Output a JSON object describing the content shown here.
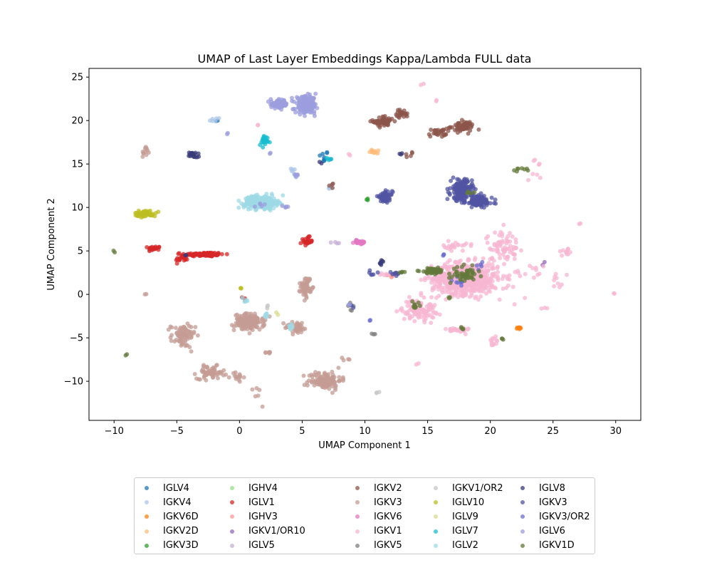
{
  "chart_data": {
    "type": "scatter",
    "title": "UMAP of Last Layer Embeddings Kappa/Lambda FULL data",
    "xlabel": "UMAP Component 1",
    "ylabel": "UMAP Component 2",
    "xlim": [
      -12,
      32
    ],
    "ylim": [
      -14.5,
      26
    ],
    "xticks": [
      -10,
      -5,
      0,
      5,
      10,
      15,
      20,
      25,
      30
    ],
    "yticks": [
      -10,
      -5,
      0,
      5,
      10,
      15,
      20,
      25
    ],
    "legend_position": "bottom",
    "legend_columns": 5,
    "series": [
      {
        "name": "IGLV4",
        "color": "#1f77b4",
        "clusters": [
          [
            6.7,
            15.8,
            0.35,
            0.6,
            10
          ],
          [
            -1.8,
            20.0,
            0.2,
            0.2,
            2
          ]
        ]
      },
      {
        "name": "IGKV4",
        "color": "#aec7e8",
        "clusters": [
          [
            -3.3,
            4.6,
            0.8,
            0.15,
            14
          ],
          [
            4.2,
            14.2,
            0.3,
            0.3,
            5
          ],
          [
            7.3,
            12.3,
            0.3,
            0.2,
            5
          ],
          [
            -2.0,
            20.1,
            0.4,
            0.2,
            6
          ]
        ]
      },
      {
        "name": "IGKV6D",
        "color": "#ff7f0e",
        "clusters": [
          [
            22.3,
            -3.9,
            0.2,
            0.1,
            6
          ]
        ]
      },
      {
        "name": "IGKV2D",
        "color": "#ffbb78",
        "clusters": [
          [
            10.9,
            16.4,
            0.45,
            0.3,
            12
          ]
        ]
      },
      {
        "name": "IGKV3D",
        "color": "#2ca02c",
        "clusters": [
          [
            10.2,
            11.0,
            0.15,
            0.15,
            3
          ]
        ]
      },
      {
        "name": "IGHV4",
        "color": "#98df8a",
        "clusters": [
          [
            15.5,
            2.5,
            0.5,
            0.2,
            3
          ]
        ]
      },
      {
        "name": "IGLV1",
        "color": "#d62728",
        "clusters": [
          [
            -2.8,
            4.6,
            1.3,
            0.2,
            110
          ],
          [
            -6.8,
            5.3,
            0.4,
            0.2,
            22
          ],
          [
            -4.6,
            4.1,
            0.4,
            0.4,
            20
          ],
          [
            5.4,
            6.1,
            0.35,
            0.4,
            28
          ],
          [
            0.4,
            -0.5,
            0.15,
            0.2,
            3
          ]
        ]
      },
      {
        "name": "IGHV3",
        "color": "#ff9896",
        "clusters": [
          [
            11.9,
            2.1,
            0.3,
            0.2,
            5
          ]
        ]
      },
      {
        "name": "IGKV1/OR10",
        "color": "#9467bd",
        "clusters": [
          [
            9.3,
            6.1,
            0.2,
            0.2,
            3
          ],
          [
            24.2,
            3.5,
            0.15,
            0.15,
            2
          ]
        ]
      },
      {
        "name": "IGLV5",
        "color": "#c5b0d5",
        "clusters": [
          [
            7.6,
            6.0,
            0.3,
            0.2,
            4
          ]
        ]
      },
      {
        "name": "IGKV2",
        "color": "#8c564b",
        "clusters": [
          [
            11.5,
            19.9,
            0.7,
            0.5,
            60
          ],
          [
            13.0,
            20.8,
            0.4,
            0.4,
            24
          ],
          [
            15.8,
            18.6,
            0.6,
            0.4,
            30
          ],
          [
            17.8,
            19.3,
            0.8,
            0.5,
            60
          ],
          [
            13.5,
            16.1,
            0.3,
            0.2,
            5
          ],
          [
            7.2,
            12.5,
            0.2,
            0.2,
            4
          ]
        ]
      },
      {
        "name": "IGKV3",
        "color": "#c49c94",
        "clusters": [
          [
            0.8,
            -3.2,
            1.0,
            0.8,
            140
          ],
          [
            5.3,
            0.9,
            0.35,
            1.0,
            60
          ],
          [
            -4.5,
            -4.8,
            0.8,
            1.1,
            80
          ],
          [
            -2.3,
            -9.0,
            0.9,
            0.6,
            65
          ],
          [
            6.8,
            -9.9,
            1.1,
            0.9,
            120
          ],
          [
            4.6,
            -3.8,
            0.8,
            0.6,
            40
          ],
          [
            -7.5,
            16.4,
            0.2,
            0.6,
            12
          ],
          [
            -0.2,
            -9.5,
            0.4,
            0.5,
            14
          ],
          [
            2.4,
            -6.7,
            0.2,
            0.2,
            6
          ],
          [
            1.4,
            -11.8,
            0.5,
            1.0,
            6
          ],
          [
            8.6,
            -7.5,
            0.3,
            0.3,
            4
          ],
          [
            -7.5,
            0.0,
            0.1,
            0.1,
            2
          ]
        ]
      },
      {
        "name": "IGKV6",
        "color": "#e377c2",
        "clusters": [
          [
            9.6,
            6.0,
            0.4,
            0.2,
            18
          ]
        ]
      },
      {
        "name": "IGKV1",
        "color": "#f7b6d2",
        "clusters": [
          [
            18.0,
            1.8,
            2.2,
            1.5,
            650
          ],
          [
            14.3,
            -1.8,
            1.1,
            1.0,
            110
          ],
          [
            21.0,
            5.6,
            1.1,
            1.5,
            70
          ],
          [
            17.4,
            -4.1,
            0.8,
            0.3,
            30
          ],
          [
            20.4,
            -5.5,
            0.3,
            0.8,
            12
          ],
          [
            23.0,
            2.0,
            1.5,
            2.0,
            20
          ],
          [
            26.0,
            5.0,
            0.6,
            0.5,
            12
          ],
          [
            17.2,
            5.5,
            0.8,
            0.4,
            22
          ],
          [
            25.5,
            1.5,
            0.5,
            1.2,
            8
          ],
          [
            14.6,
            24.2,
            0.15,
            0.15,
            2
          ],
          [
            15.8,
            22.3,
            0.15,
            0.15,
            2
          ],
          [
            23.5,
            14.5,
            0.5,
            1.5,
            8
          ],
          [
            29.9,
            0.0,
            0.12,
            0.12,
            2
          ],
          [
            27.2,
            8.2,
            0.2,
            0.2,
            2
          ],
          [
            14.3,
            -8.0,
            0.15,
            0.15,
            2
          ],
          [
            8.8,
            16.1,
            0.15,
            0.15,
            2
          ],
          [
            1.5,
            19.5,
            0.15,
            0.15,
            2
          ],
          [
            24.3,
            -1.6,
            0.3,
            0.3,
            3
          ],
          [
            11.5,
            2.3,
            0.3,
            0.2,
            5
          ]
        ]
      },
      {
        "name": "IGKV5",
        "color": "#7f7f7f",
        "clusters": [
          [
            10.6,
            -4.5,
            0.15,
            0.15,
            3
          ],
          [
            8.9,
            -1.5,
            0.2,
            0.5,
            5
          ]
        ]
      },
      {
        "name": "IGKV1/OR2",
        "color": "#c7c7c7",
        "clusters": [
          [
            11.0,
            -11.4,
            0.15,
            0.15,
            3
          ],
          [
            2.2,
            -1.3,
            0.2,
            0.2,
            3
          ]
        ]
      },
      {
        "name": "IGLV10",
        "color": "#bcbd22",
        "clusters": [
          [
            -7.5,
            9.3,
            0.7,
            0.3,
            60
          ],
          [
            0.1,
            0.7,
            0.1,
            0.1,
            3
          ]
        ]
      },
      {
        "name": "IGLV9",
        "color": "#dbdb8d",
        "clusters": [
          [
            3.0,
            -2.2,
            0.15,
            0.15,
            2
          ]
        ]
      },
      {
        "name": "IGLV7",
        "color": "#17becf",
        "clusters": [
          [
            2.0,
            17.7,
            0.35,
            0.5,
            28
          ],
          [
            7.0,
            15.5,
            0.2,
            0.2,
            4
          ]
        ]
      },
      {
        "name": "IGLV2",
        "color": "#9edae5",
        "clusters": [
          [
            1.7,
            10.6,
            1.1,
            0.6,
            300
          ],
          [
            4.1,
            -3.9,
            0.3,
            0.4,
            10
          ],
          [
            0.5,
            -0.7,
            0.2,
            0.3,
            5
          ],
          [
            4.5,
            13.8,
            0.2,
            0.2,
            4
          ],
          [
            2.1,
            -2.5,
            0.2,
            0.3,
            6
          ]
        ]
      },
      {
        "name": "IGLV8",
        "color": "#393b79",
        "clusters": [
          [
            -3.7,
            16.1,
            0.3,
            0.3,
            22
          ],
          [
            -4.3,
            4.5,
            0.1,
            0.1,
            2
          ],
          [
            11.3,
            3.6,
            0.2,
            0.3,
            8
          ],
          [
            6.5,
            15.3,
            0.15,
            0.15,
            2
          ],
          [
            12.9,
            16.2,
            0.15,
            0.15,
            3
          ]
        ]
      },
      {
        "name": "IGKV3",
        "color": "#5254a3",
        "clusters": [
          [
            17.7,
            12.0,
            0.7,
            1.0,
            170
          ],
          [
            19.1,
            10.7,
            0.9,
            0.6,
            110
          ],
          [
            11.6,
            11.2,
            0.5,
            0.5,
            60
          ],
          [
            9.0,
            -1.3,
            0.15,
            0.15,
            3
          ],
          [
            12.4,
            2.4,
            0.4,
            0.2,
            10
          ],
          [
            10.6,
            2.5,
            0.3,
            0.2,
            6
          ]
        ]
      },
      {
        "name": "IGKV3/OR2",
        "color": "#6b6ecf",
        "clusters": [
          [
            16.2,
            4.6,
            0.15,
            0.15,
            3
          ],
          [
            17.7,
            1.6,
            0.6,
            0.6,
            10
          ],
          [
            19.2,
            3.3,
            0.3,
            0.3,
            5
          ],
          [
            10.4,
            -3.2,
            0.15,
            0.15,
            2
          ]
        ]
      },
      {
        "name": "IGLV6",
        "color": "#9c9ede",
        "clusters": [
          [
            5.3,
            21.8,
            0.7,
            0.8,
            190
          ],
          [
            3.2,
            21.9,
            0.6,
            0.4,
            80
          ],
          [
            3.8,
            10.1,
            0.25,
            0.1,
            5
          ],
          [
            4.4,
            13.7,
            0.25,
            0.2,
            6
          ],
          [
            -1.0,
            18.6,
            0.1,
            0.1,
            2
          ],
          [
            1.7,
            10.3,
            0.3,
            0.3,
            5
          ],
          [
            8.8,
            -1.2,
            0.1,
            0.1,
            2
          ],
          [
            2.4,
            16.3,
            0.1,
            0.1,
            2
          ]
        ]
      },
      {
        "name": "IGKV1D",
        "color": "#637939",
        "clusters": [
          [
            15.4,
            2.7,
            0.8,
            0.25,
            60
          ],
          [
            18.0,
            2.3,
            0.8,
            0.7,
            50
          ],
          [
            14.0,
            -1.3,
            0.4,
            0.3,
            10
          ],
          [
            22.3,
            14.4,
            0.6,
            0.2,
            8
          ],
          [
            -10.0,
            5.0,
            0.1,
            0.1,
            2
          ],
          [
            -9.0,
            -7.0,
            0.1,
            0.1,
            2
          ],
          [
            21.0,
            -5.2,
            0.15,
            0.15,
            3
          ],
          [
            17.8,
            -3.9,
            0.3,
            0.2,
            4
          ],
          [
            16.5,
            -0.3,
            0.2,
            0.2,
            3
          ],
          [
            13.1,
            2.5,
            0.3,
            0.2,
            4
          ],
          [
            18.5,
            11.5,
            0.4,
            0.3,
            5
          ]
        ]
      }
    ]
  }
}
